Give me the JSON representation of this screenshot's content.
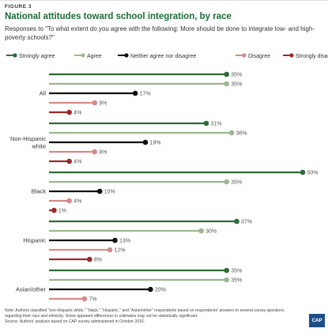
{
  "figure_label": "FIGURE 3",
  "title": "National attitudes toward school integration, by race",
  "subtitle": "Responses to \"To what extent do you agree with the following: More should be done to integrate low- and high-poverty schools?\"",
  "note": "Note: Authors classified \"non-Hispanic white,\" \"black,\" \"Hispanic,\" and \"Asian/other\" respondents based on respondents' answers to several survey questions regarding their race and ethnicity. Some apparent differences in estimates may not be statistically significant.",
  "source": "Source: Authors' analysis based on CAP survey administered in October 2016.",
  "logo": "CAP",
  "chart_data": {
    "type": "bar",
    "orientation": "horizontal",
    "style": "lollipop",
    "legend_position": "top",
    "xlim": [
      0,
      50
    ],
    "value_suffix": "%",
    "grid": false,
    "categories": [
      {
        "label": [
          "All"
        ]
      },
      {
        "label": [
          "Non-Hispanic",
          "white"
        ]
      },
      {
        "label": [
          "Black"
        ]
      },
      {
        "label": [
          "Hispanic"
        ]
      },
      {
        "label": [
          "Asian/other"
        ]
      }
    ],
    "series": [
      {
        "name": "Strongly agree",
        "color": "#2e6b36",
        "values": [
          35,
          31,
          50,
          37,
          35
        ]
      },
      {
        "name": "Agree",
        "color": "#9bb890",
        "values": [
          35,
          36,
          35,
          30,
          35
        ]
      },
      {
        "name": "Neither agree nor disagree",
        "color": "#111111",
        "values": [
          17,
          19,
          10,
          13,
          20
        ]
      },
      {
        "name": "Disagree",
        "color": "#d58a8a",
        "values": [
          9,
          9,
          4,
          12,
          7
        ]
      },
      {
        "name": "Strongly disagree",
        "color": "#9b2a2a",
        "values": [
          4,
          4,
          1,
          8,
          3
        ]
      }
    ]
  }
}
